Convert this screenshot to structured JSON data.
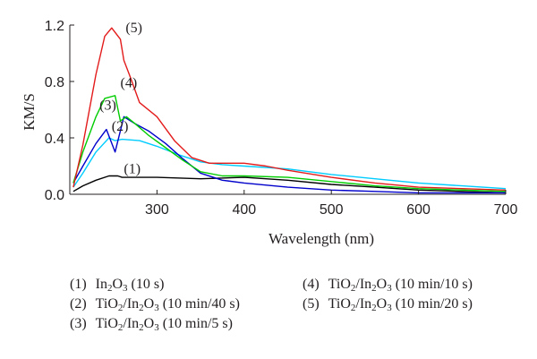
{
  "chart_data": {
    "type": "line",
    "xlabel": "Wavelength (nm)",
    "ylabel": "KM/S",
    "xlim": [
      200,
      700
    ],
    "ylim": [
      0,
      1.2
    ],
    "x_ticks": [
      300,
      400,
      500,
      600,
      700
    ],
    "y_ticks": [
      0.0,
      0.4,
      0.8,
      1.2
    ],
    "y_tick_labels": [
      "0.0",
      "0.4",
      "0.8",
      "1.2"
    ],
    "grid": false,
    "legend_position": "below",
    "series": [
      {
        "name": "(1) In2O3 (10 s)",
        "label": "(1)",
        "color": "#000000",
        "points": [
          [
            204,
            0.02
          ],
          [
            215,
            0.06
          ],
          [
            230,
            0.1
          ],
          [
            245,
            0.13
          ],
          [
            255,
            0.13
          ],
          [
            260,
            0.12
          ],
          [
            300,
            0.12
          ],
          [
            350,
            0.11
          ],
          [
            400,
            0.12
          ],
          [
            450,
            0.1
          ],
          [
            500,
            0.07
          ],
          [
            550,
            0.05
          ],
          [
            600,
            0.03
          ],
          [
            650,
            0.02
          ],
          [
            700,
            0.01
          ]
        ]
      },
      {
        "name": "(2) TiO2/In2O3 (10 min/40 s)",
        "label": "(2)",
        "color": "#00ccff",
        "points": [
          [
            204,
            0.05
          ],
          [
            215,
            0.15
          ],
          [
            230,
            0.3
          ],
          [
            245,
            0.4
          ],
          [
            252,
            0.38
          ],
          [
            260,
            0.39
          ],
          [
            280,
            0.38
          ],
          [
            300,
            0.34
          ],
          [
            325,
            0.28
          ],
          [
            350,
            0.23
          ],
          [
            375,
            0.21
          ],
          [
            400,
            0.2
          ],
          [
            450,
            0.18
          ],
          [
            500,
            0.14
          ],
          [
            550,
            0.11
          ],
          [
            600,
            0.08
          ],
          [
            650,
            0.06
          ],
          [
            700,
            0.04
          ]
        ]
      },
      {
        "name": "(3) TiO2/In2O3 (10 min/5 s)",
        "label": "(3)",
        "color": "#0000cc",
        "points": [
          [
            204,
            0.08
          ],
          [
            215,
            0.2
          ],
          [
            230,
            0.36
          ],
          [
            242,
            0.46
          ],
          [
            252,
            0.3
          ],
          [
            262,
            0.55
          ],
          [
            275,
            0.5
          ],
          [
            290,
            0.45
          ],
          [
            310,
            0.36
          ],
          [
            330,
            0.25
          ],
          [
            350,
            0.15
          ],
          [
            375,
            0.1
          ],
          [
            400,
            0.08
          ],
          [
            450,
            0.05
          ],
          [
            500,
            0.03
          ],
          [
            550,
            0.02
          ],
          [
            600,
            0.01
          ],
          [
            700,
            0.01
          ]
        ]
      },
      {
        "name": "(4) TiO2/In2O3 (10 min/10 s)",
        "label": "(4)",
        "color": "#00cc00",
        "points": [
          [
            204,
            0.08
          ],
          [
            215,
            0.3
          ],
          [
            230,
            0.55
          ],
          [
            240,
            0.68
          ],
          [
            252,
            0.7
          ],
          [
            258,
            0.52
          ],
          [
            265,
            0.55
          ],
          [
            275,
            0.5
          ],
          [
            290,
            0.42
          ],
          [
            310,
            0.33
          ],
          [
            330,
            0.24
          ],
          [
            350,
            0.16
          ],
          [
            375,
            0.13
          ],
          [
            400,
            0.13
          ],
          [
            450,
            0.12
          ],
          [
            500,
            0.09
          ],
          [
            550,
            0.06
          ],
          [
            600,
            0.04
          ],
          [
            700,
            0.02
          ]
        ]
      },
      {
        "name": "(5) TiO2/In2O3 (10 min/20 s)",
        "label": "(5)",
        "color": "#e31b1b",
        "points": [
          [
            204,
            0.05
          ],
          [
            215,
            0.35
          ],
          [
            230,
            0.85
          ],
          [
            240,
            1.12
          ],
          [
            248,
            1.18
          ],
          [
            258,
            1.1
          ],
          [
            262,
            0.95
          ],
          [
            270,
            0.82
          ],
          [
            280,
            0.65
          ],
          [
            300,
            0.55
          ],
          [
            320,
            0.38
          ],
          [
            340,
            0.26
          ],
          [
            360,
            0.22
          ],
          [
            380,
            0.22
          ],
          [
            400,
            0.22
          ],
          [
            425,
            0.2
          ],
          [
            450,
            0.17
          ],
          [
            500,
            0.12
          ],
          [
            550,
            0.08
          ],
          [
            600,
            0.05
          ],
          [
            650,
            0.04
          ],
          [
            700,
            0.03
          ]
        ]
      }
    ]
  },
  "legend": {
    "items": [
      {
        "num": "(1)",
        "parts": [
          {
            "t": "In"
          },
          {
            "s": "2"
          },
          {
            "t": "O"
          },
          {
            "s": "3"
          },
          {
            "t": " (10 s)"
          }
        ]
      },
      {
        "num": "(2)",
        "parts": [
          {
            "t": "TiO"
          },
          {
            "s": "2"
          },
          {
            "t": "/In"
          },
          {
            "s": "2"
          },
          {
            "t": "O"
          },
          {
            "s": "3"
          },
          {
            "t": " (10 min/40 s)"
          }
        ]
      },
      {
        "num": "(3)",
        "parts": [
          {
            "t": "TiO"
          },
          {
            "s": "2"
          },
          {
            "t": "/In"
          },
          {
            "s": "2"
          },
          {
            "t": "O"
          },
          {
            "s": "3"
          },
          {
            "t": " (10 min/5 s)"
          }
        ]
      },
      {
        "num": "(4)",
        "parts": [
          {
            "t": "TiO"
          },
          {
            "s": "2"
          },
          {
            "t": "/In"
          },
          {
            "s": "2"
          },
          {
            "t": "O"
          },
          {
            "s": "3"
          },
          {
            "t": " (10 min/10 s)"
          }
        ]
      },
      {
        "num": "(5)",
        "parts": [
          {
            "t": "TiO"
          },
          {
            "s": "2"
          },
          {
            "t": "/In"
          },
          {
            "s": "2"
          },
          {
            "t": "O"
          },
          {
            "s": "3"
          },
          {
            "t": " (10 min/20 s)"
          }
        ]
      }
    ]
  }
}
